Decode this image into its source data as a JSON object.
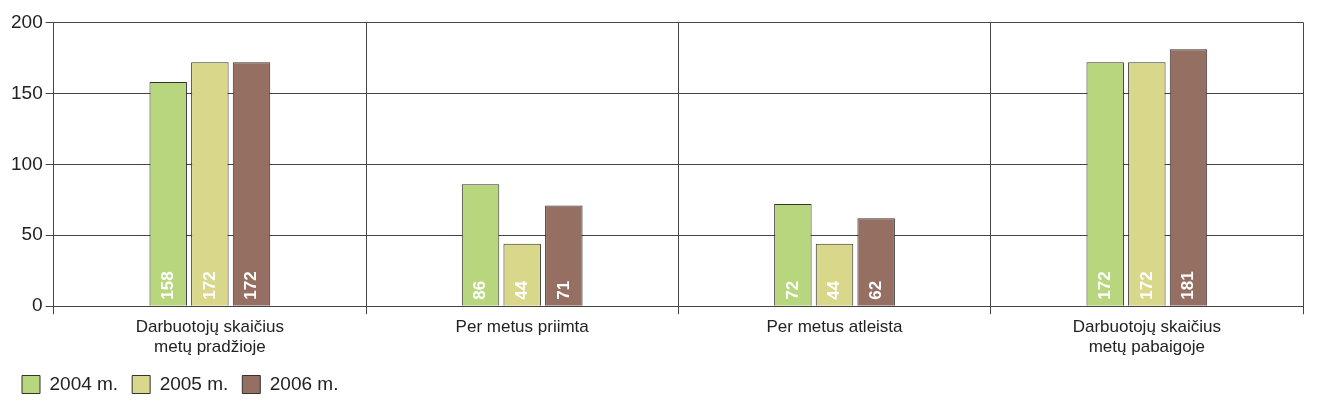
{
  "chart_data": {
    "type": "bar",
    "categories": [
      "Darbuotojų skaičius\nmetų pradžioje",
      "Per metus priimta",
      "Per metus atleista",
      "Darbuotojų skaičius\nmetų pabaigoje"
    ],
    "series": [
      {
        "name": "2004 m.",
        "color": "#b8d67e",
        "values": [
          158,
          86,
          72,
          172
        ]
      },
      {
        "name": "2005 m.",
        "color": "#d8d78a",
        "values": [
          172,
          44,
          44,
          172
        ]
      },
      {
        "name": "2006 m.",
        "color": "#956f62",
        "values": [
          172,
          71,
          62,
          181
        ]
      }
    ],
    "ylim": [
      0,
      200
    ],
    "yticks": [
      0,
      50,
      100,
      150,
      200
    ],
    "grid": true,
    "legend": "bottom left",
    "data_labels": true
  }
}
